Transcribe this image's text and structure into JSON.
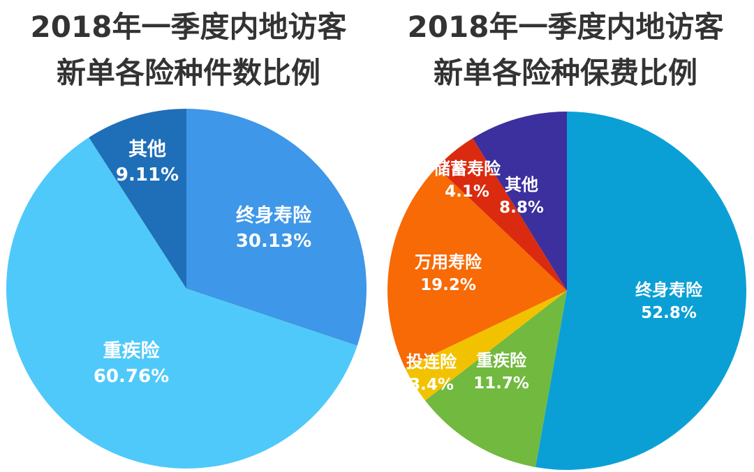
{
  "chart_data": [
    {
      "type": "pie",
      "title_line1": "2018年一季度内地访客",
      "title_line2": "新单各险种件数比例",
      "slices": [
        {
          "name": "终身寿险",
          "value": 30.13,
          "label": "30.13%",
          "color": "#3E97E8"
        },
        {
          "name": "重疾险",
          "value": 60.76,
          "label": "60.76%",
          "color": "#4FC9FA"
        },
        {
          "name": "其他",
          "value": 9.11,
          "label": "9.11%",
          "color": "#1F6EB8"
        }
      ]
    },
    {
      "type": "pie",
      "title_line1": "2018年一季度内地访客",
      "title_line2": "新单各险种保费比例",
      "slices": [
        {
          "name": "终身寿险",
          "value": 52.8,
          "label": "52.8%",
          "color": "#0AA0D6"
        },
        {
          "name": "重疾险",
          "value": 11.7,
          "label": "11.7%",
          "color": "#71B93F"
        },
        {
          "name": "投连险",
          "value": 3.4,
          "label": "3.4%",
          "color": "#F2C200"
        },
        {
          "name": "万用寿险",
          "value": 19.2,
          "label": "19.2%",
          "color": "#F76A05"
        },
        {
          "name": "储蓄寿险",
          "value": 4.1,
          "label": "4.1%",
          "color": "#DA2B10"
        },
        {
          "name": "其他",
          "value": 8.8,
          "label": "8.8%",
          "color": "#3C2F9E"
        }
      ]
    }
  ]
}
